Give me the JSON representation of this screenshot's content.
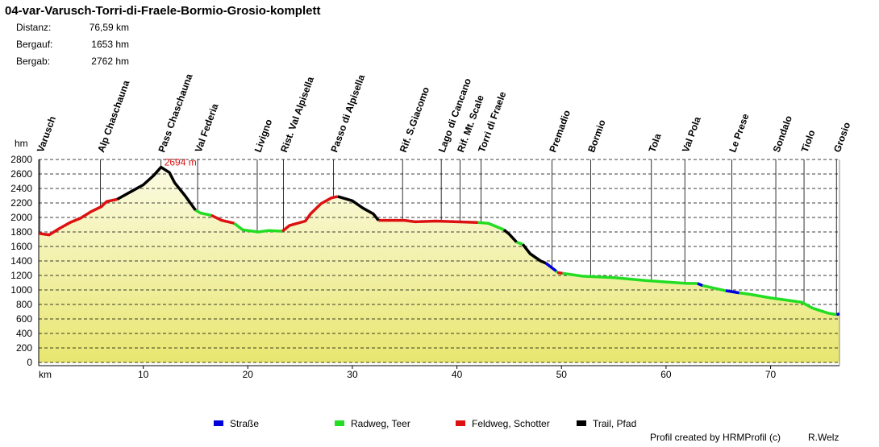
{
  "chart_data": {
    "type": "line",
    "title": "04-var-Varusch-Torri-di-Fraele-Bormio-Grosio-komplett",
    "stats": [
      {
        "label": "Distanz:",
        "value": "76,59 km"
      },
      {
        "label": "Bergauf:",
        "value": "1653 hm"
      },
      {
        "label": "Bergab:",
        "value": "2762 hm"
      }
    ],
    "x_label": "km",
    "y_label": "hm",
    "xlim": [
      0,
      76.59
    ],
    "ylim": [
      0,
      2800
    ],
    "xticks": [
      10,
      20,
      30,
      40,
      50,
      60,
      70
    ],
    "yticks": [
      0,
      200,
      400,
      600,
      800,
      1000,
      1200,
      1400,
      1600,
      1800,
      2000,
      2200,
      2400,
      2600,
      2800
    ],
    "grid": true,
    "peak": {
      "x": 11.7,
      "value": 2694,
      "label": "2694 m"
    },
    "waypoints": {
      "names": [
        "Varusch",
        "Alp Chaschauna",
        "Pass Chaschauna",
        "Val Federia",
        "Livigno",
        "Rist. Val Alpisella",
        "Passo di Alpisella",
        "Rif. S.Giacomo",
        "Lago di Cancano",
        "Rif. Mt. Scale",
        "Torri di Fraele",
        "Premadio",
        "Bormio",
        "Tola",
        "Val Pola",
        "Le Prese",
        "Sondalo",
        "Tiolo",
        "Grosio"
      ],
      "x": [
        0.1,
        5.9,
        11.7,
        15.2,
        20.9,
        23.4,
        28.2,
        34.8,
        38.5,
        40.3,
        42.3,
        49.1,
        52.8,
        58.6,
        61.8,
        66.3,
        70.5,
        73.2,
        76.3
      ]
    },
    "series": [
      {
        "name": "Straße",
        "color": "#0000dd",
        "x": [
          48.5,
          49.5,
          null,
          63,
          63.5,
          null,
          65.7,
          67,
          null,
          76.3,
          76.59
        ],
        "values": [
          1370,
          1260,
          null,
          1090,
          1060,
          null,
          990,
          960,
          null,
          660,
          670
        ]
      },
      {
        "name": "Radweg, Teer",
        "color": "#22dd22",
        "x": [
          15,
          15.5,
          16.5,
          null,
          18.7,
          19.5,
          21,
          22,
          23.3,
          null,
          42,
          43,
          44.5,
          null,
          45.7,
          46.3,
          null,
          49.5,
          49.6,
          null,
          50.1,
          52,
          55,
          58,
          60,
          62,
          63,
          null,
          63.5,
          65.7,
          null,
          67,
          68,
          70,
          72,
          73,
          74,
          75.5,
          76.3
        ],
        "values": [
          2100,
          2060,
          2030,
          null,
          1920,
          1830,
          1800,
          1820,
          1810,
          null,
          1930,
          1920,
          1830,
          null,
          1660,
          1630,
          null,
          1260,
          1240,
          null,
          1230,
          1190,
          1170,
          1130,
          1110,
          1090,
          1090,
          null,
          1060,
          990,
          null,
          960,
          940,
          890,
          850,
          830,
          750,
          680,
          660
        ]
      },
      {
        "name": "Feldweg, Schotter",
        "color": "#dd1111",
        "x": [
          0,
          1,
          2,
          3,
          4,
          5,
          6,
          6.5,
          7.5,
          null,
          16.5,
          17.5,
          18.7,
          null,
          23.3,
          24,
          25.5,
          26,
          27,
          28,
          28.6,
          null,
          32.5,
          35,
          36,
          38,
          40,
          42,
          null,
          49.6,
          50.1
        ],
        "values": [
          1780,
          1760,
          1850,
          1930,
          1990,
          2080,
          2150,
          2220,
          2250,
          null,
          2030,
          1960,
          1920,
          null,
          1810,
          1890,
          1950,
          2050,
          2190,
          2270,
          2290,
          null,
          1960,
          1960,
          1940,
          1950,
          1940,
          1930,
          null,
          1240,
          1230
        ]
      },
      {
        "name": "Trail, Pfad",
        "color": "#000000",
        "x": [
          7.5,
          8,
          9,
          10,
          11,
          11.7,
          12.5,
          13,
          14,
          15,
          null,
          28.6,
          30,
          31,
          32,
          32.5,
          null,
          44.5,
          45,
          45.7,
          null,
          46.3,
          47,
          48,
          48.5
        ],
        "values": [
          2250,
          2290,
          2370,
          2450,
          2580,
          2694,
          2620,
          2480,
          2300,
          2100,
          null,
          2290,
          2230,
          2130,
          2050,
          1960,
          null,
          1830,
          1770,
          1660,
          null,
          1630,
          1500,
          1400,
          1370
        ]
      }
    ],
    "credit": "Profil created by HRMProfil (c)",
    "author": "R.Welz"
  }
}
